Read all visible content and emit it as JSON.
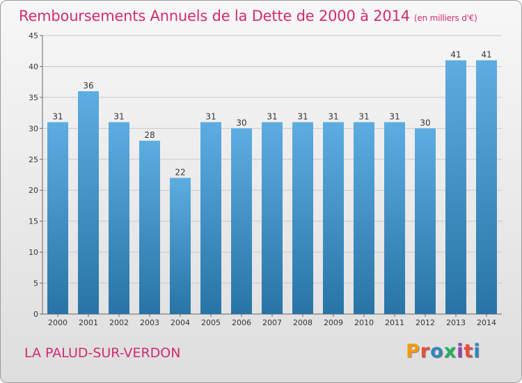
{
  "header": {
    "title": "Remboursements Annuels de la Dette de 2000 à 2014",
    "unit": "(en milliers d'€)"
  },
  "footer": {
    "commune": "LA PALUD-SUR-VERDON",
    "logo": "Proxiti",
    "logo_colors": [
      "#f39c12",
      "#e74c3c",
      "#2e86c1",
      "#27ae60",
      "#8e44ad",
      "#e74c3c",
      "#2e86c1"
    ]
  },
  "colors": {
    "title": "#d02c70",
    "bar_light": "#5dade2",
    "bar_dark": "#2874a6"
  },
  "chart_data": {
    "type": "bar",
    "categories": [
      "2000",
      "2001",
      "2002",
      "2003",
      "2004",
      "2005",
      "2006",
      "2007",
      "2008",
      "2009",
      "2010",
      "2011",
      "2012",
      "2013",
      "2014"
    ],
    "values": [
      31,
      36,
      31,
      28,
      22,
      31,
      30,
      31,
      31,
      31,
      31,
      31,
      30,
      41,
      41
    ],
    "title": "Remboursements Annuels de la Dette de 2000 à 2014",
    "xlabel": "",
    "ylabel": "",
    "ylim": [
      0,
      45
    ],
    "yticks": [
      0,
      5,
      10,
      15,
      20,
      25,
      30,
      35,
      40,
      45
    ],
    "grid": true,
    "data_labels": true
  }
}
